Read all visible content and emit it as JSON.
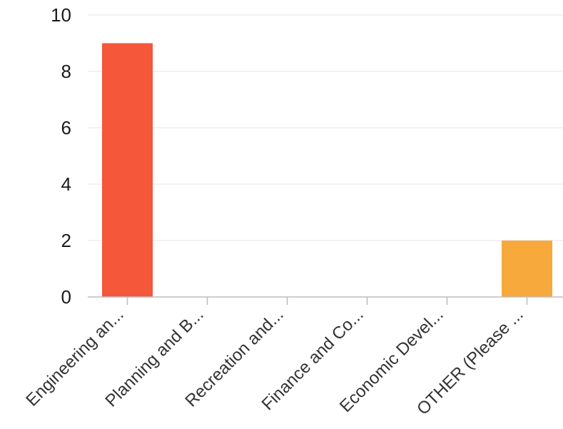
{
  "chart_data": {
    "type": "bar",
    "categories": [
      "Engineering an...",
      "Planning and B...",
      "Recreation and...",
      "Finance and Co...",
      "Economic Devel...",
      "OTHER (Please ..."
    ],
    "values": [
      9,
      0,
      0,
      0,
      0,
      2
    ],
    "bar_colors": [
      "#f4573a",
      "#f4573a",
      "#f4573a",
      "#f4573a",
      "#f4573a",
      "#f7a93b"
    ],
    "title": "",
    "xlabel": "",
    "ylabel": "",
    "ylim": [
      0,
      10
    ],
    "yticks": [
      0,
      2,
      4,
      6,
      8,
      10
    ],
    "grid": true,
    "legend": "none"
  }
}
